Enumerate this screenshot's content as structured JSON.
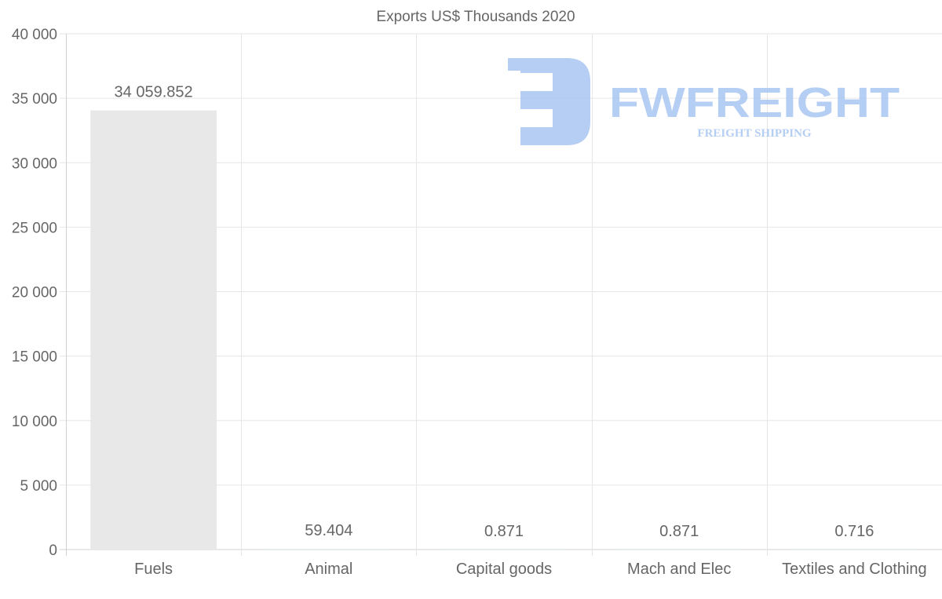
{
  "chart_data": {
    "type": "bar",
    "title": "Exports US$ Thousands 2020",
    "xlabel": "",
    "ylabel": "",
    "ylim": [
      0,
      40000
    ],
    "yticks": [
      0,
      5000,
      10000,
      15000,
      20000,
      25000,
      30000,
      35000,
      40000
    ],
    "ytick_labels": [
      "0",
      "5 000",
      "10 000",
      "15 000",
      "20 000",
      "25 000",
      "30 000",
      "35 000",
      "40 000"
    ],
    "grid": true,
    "categories": [
      "Fuels",
      "Animal",
      "Capital goods",
      "Mach and Elec",
      "Textiles and Clothing"
    ],
    "values": [
      34059.852,
      59.404,
      0.871,
      0.871,
      0.716
    ],
    "data_labels": [
      "34 059.852",
      "59.404",
      "0.871",
      "0.871",
      "0.716"
    ],
    "bar_colors": [
      "#e8e8e8",
      "#e3f0ee",
      "#e3f0ee",
      "#e3f0ee",
      "#e3f0ee"
    ]
  },
  "watermark": {
    "brand": "FWFREIGHT",
    "tagline": "FREIGHT SHIPPING",
    "color": "#a9c6f2"
  }
}
